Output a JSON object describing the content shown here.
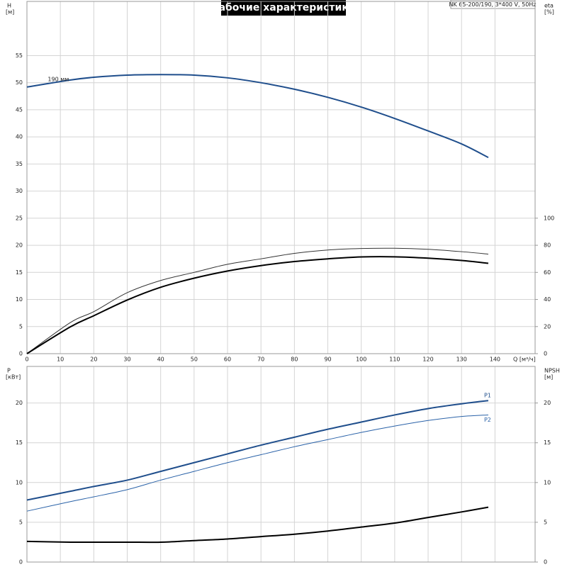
{
  "chart_data": [
    {
      "type": "line",
      "title": "Рабочие характеристики",
      "subtitle": "NK 65-200/190, 3*400 V, 50Hz",
      "y_label": "H",
      "y_unit": "[м]",
      "y2_label": "eta",
      "y2_unit": "[%]",
      "x_label": "Q [м³/ч]",
      "annotation": "190 мм",
      "x": [
        0,
        13,
        20,
        30,
        40,
        50,
        60,
        70,
        80,
        90,
        100,
        110,
        120,
        130,
        138
      ],
      "xlim": [
        0,
        152
      ],
      "xticks": [
        0,
        10,
        20,
        30,
        40,
        50,
        60,
        70,
        80,
        90,
        100,
        110,
        120,
        130,
        140
      ],
      "ylim": [
        0,
        65
      ],
      "yticks": [
        0,
        5,
        10,
        15,
        20,
        25,
        30,
        35,
        40,
        45,
        50,
        55
      ],
      "y2lim": [
        0,
        260
      ],
      "y2ticks": [
        0,
        20,
        40,
        60,
        80,
        100
      ],
      "grid": true,
      "series": [
        {
          "color": "#1f4e8c",
          "width": 2,
          "values": [
            49.2,
            50.5,
            51,
            51.4,
            51.5,
            51.4,
            50.9,
            50,
            48.8,
            47.3,
            45.5,
            43.4,
            41.1,
            38.7,
            36.2
          ]
        },
        {
          "color": "#333333",
          "width": 1,
          "axis": "y2",
          "values": [
            0,
            23,
            31,
            45,
            54,
            60,
            66,
            70,
            74,
            76.5,
            77.6,
            77.8,
            77,
            75.3,
            73.5
          ]
        },
        {
          "color": "#000000",
          "width": 2,
          "axis": "y2",
          "values": [
            0,
            19.8,
            28,
            39.6,
            49,
            55.7,
            61,
            65,
            68,
            70,
            71.4,
            71.5,
            70.5,
            68.8,
            66.7
          ]
        }
      ]
    },
    {
      "type": "line",
      "y_label": "P",
      "y_unit": "[кВт]",
      "y2_label": "NPSH",
      "y2_unit": "[м]",
      "x": [
        0,
        13,
        20,
        30,
        40,
        50,
        60,
        70,
        80,
        90,
        100,
        110,
        120,
        130,
        138
      ],
      "xlim": [
        0,
        152
      ],
      "ylim": [
        0,
        24.6
      ],
      "yticks": [
        0,
        5,
        10,
        15,
        20
      ],
      "y2lim": [
        0,
        24.6
      ],
      "y2ticks": [
        0,
        5,
        10,
        15,
        20
      ],
      "grid": true,
      "series": [
        {
          "name": "P1",
          "color": "#1f4e8c",
          "width": 2,
          "values": [
            7.8,
            8.9,
            9.5,
            10.3,
            11.4,
            12.5,
            13.6,
            14.7,
            15.7,
            16.7,
            17.6,
            18.5,
            19.3,
            19.9,
            20.3
          ]
        },
        {
          "name": "P2",
          "color": "#2a62a8",
          "width": 1,
          "values": [
            6.4,
            7.6,
            8.2,
            9.1,
            10.3,
            11.4,
            12.5,
            13.5,
            14.5,
            15.4,
            16.3,
            17.1,
            17.8,
            18.3,
            18.5
          ]
        },
        {
          "color": "#000000",
          "width": 2,
          "axis": "y2",
          "values": [
            2.6,
            2.5,
            2.5,
            2.5,
            2.5,
            2.7,
            2.9,
            3.2,
            3.5,
            3.9,
            4.4,
            4.9,
            5.6,
            6.3,
            6.9
          ]
        }
      ]
    }
  ]
}
